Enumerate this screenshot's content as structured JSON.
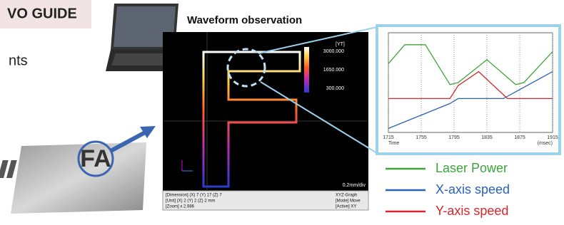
{
  "header": {
    "title": "VO GUIDE",
    "fragment": "nts"
  },
  "screen": {
    "caption": "Waveform observation",
    "scale_title": "[YT]",
    "scale_labels": [
      "3000.000",
      "1650.000",
      "300.000"
    ],
    "scale_unit": "0.2mm/div",
    "status_left": [
      "[Dimension] (X) 7  (Y) 17  (Z) 7",
      "[Unit] (X) 2  (Y) 2  (Z) 2 mm",
      "[Zoom]  x 2.986"
    ],
    "status_right": [
      "XYZ-Graph",
      "[Mode] Move",
      "[Active] XY"
    ]
  },
  "card": {
    "label": "FA"
  },
  "chart_data": {
    "type": "line",
    "x_label": "Time",
    "x_unit": "(msec)",
    "xlim": [
      1715,
      1915
    ],
    "xticks": [
      1715,
      1755,
      1795,
      1835,
      1875,
      1915
    ],
    "ylim": [
      0,
      100
    ],
    "series": [
      {
        "name": "Laser Power",
        "color": "#3ea43a",
        "x": [
          1715,
          1735,
          1760,
          1790,
          1800,
          1835,
          1870,
          1880,
          1915
        ],
        "values": [
          69,
          88,
          88,
          48,
          50,
          73,
          48,
          50,
          81
        ]
      },
      {
        "name": "X-axis speed",
        "color": "#2c62b4",
        "x": [
          1715,
          1790,
          1800,
          1855,
          1915
        ],
        "values": [
          4,
          29,
          34,
          34,
          61
        ]
      },
      {
        "name": "Y-axis speed",
        "color": "#d8262c",
        "x": [
          1715,
          1790,
          1800,
          1825,
          1860,
          1915
        ],
        "values": [
          34,
          34,
          47,
          61,
          34,
          34
        ]
      }
    ]
  }
}
